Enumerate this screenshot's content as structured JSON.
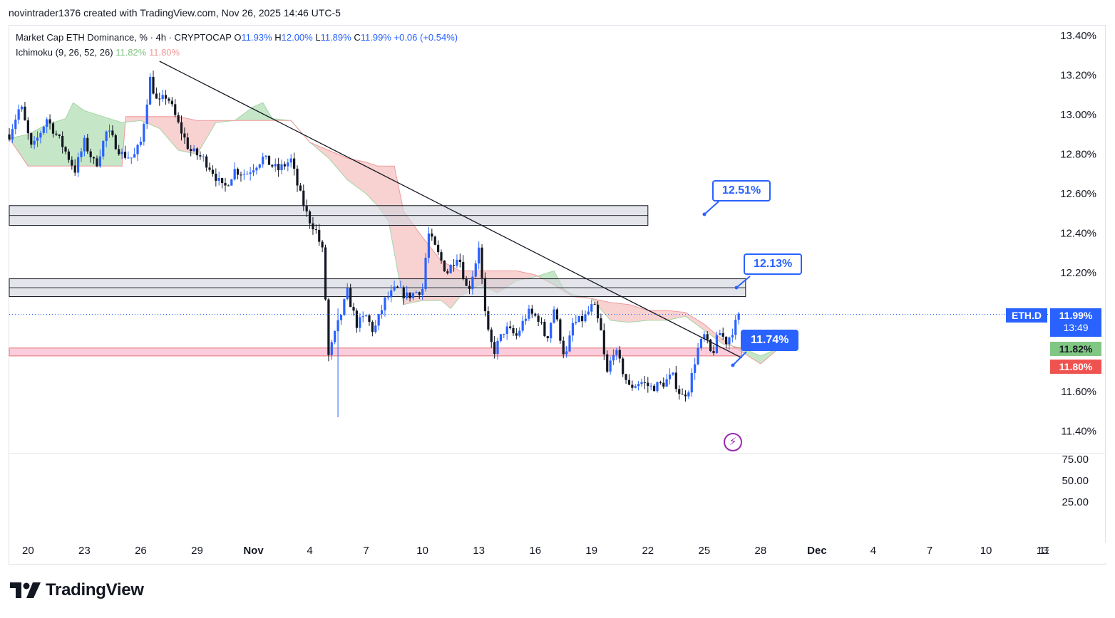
{
  "header": {
    "credit": "novintrader1376 created with TradingView.com, Nov 26, 2025 14:46 UTC-5"
  },
  "legend": {
    "title": "Market Cap ETH Dominance, % · 4h · CRYPTOCAP",
    "o_label": "O",
    "o_value": "11.93%",
    "h_label": "H",
    "h_value": "12.00%",
    "l_label": "L",
    "l_value": "11.89%",
    "c_label": "C",
    "c_value": "11.99%",
    "change": "+0.06 (+0.54%)",
    "indicator": "Ichimoku (9, 26, 52, 26)",
    "ind_a": "11.82%",
    "ind_b": "11.80%"
  },
  "price_tags": {
    "symbol": "ETH.D",
    "last": "11.99%",
    "countdown": "13:49",
    "span_a": "11.82%",
    "span_b": "11.80%"
  },
  "callouts": {
    "target_high": "12.51%",
    "target_mid": "12.13%",
    "target_low": "11.74%"
  },
  "branding": {
    "name": "TradingView"
  },
  "colors": {
    "up": "#2962ff",
    "down": "#131722",
    "cloud_bull": "#81c784",
    "cloud_bear": "#ef9a9a",
    "zone_gray": "#d1d4dc",
    "zone_red": "#f8bbd0",
    "accent": "#2962ff"
  },
  "chart_data": {
    "type": "candlestick",
    "symbol": "ETH.D",
    "title": "Market Cap ETH Dominance, % · 4h · CRYPTOCAP",
    "y_ticks": [
      "13.40%",
      "13.20%",
      "13.00%",
      "12.80%",
      "12.60%",
      "12.40%",
      "12.20%",
      "11.60%",
      "11.40%"
    ],
    "ylim": [
      11.29,
      13.45
    ],
    "x_ticks": [
      {
        "label": "20",
        "day": 20
      },
      {
        "label": "23",
        "day": 23
      },
      {
        "label": "26",
        "day": 26
      },
      {
        "label": "29",
        "day": 29
      },
      {
        "label": "Nov",
        "day": 32
      },
      {
        "label": "4",
        "day": 35
      },
      {
        "label": "7",
        "day": 38
      },
      {
        "label": "10",
        "day": 41
      },
      {
        "label": "13",
        "day": 44
      },
      {
        "label": "16",
        "day": 47
      },
      {
        "label": "19",
        "day": 50
      },
      {
        "label": "22",
        "day": 53
      },
      {
        "label": "25",
        "day": 56
      },
      {
        "label": "28",
        "day": 59
      },
      {
        "label": "Dec",
        "day": 62
      },
      {
        "label": "4",
        "day": 65
      },
      {
        "label": "7",
        "day": 68
      },
      {
        "label": "10",
        "day": 71
      },
      {
        "label": "13",
        "day": 74
      }
    ],
    "xlim": [
      19,
      74.3
    ],
    "candle_path": [
      [
        19.0,
        12.9
      ],
      [
        19.6,
        13.05
      ],
      [
        20.2,
        12.82
      ],
      [
        21.0,
        12.98
      ],
      [
        21.8,
        12.85
      ],
      [
        22.5,
        12.72
      ],
      [
        23.0,
        12.86
      ],
      [
        23.6,
        12.74
      ],
      [
        24.2,
        12.92
      ],
      [
        25.0,
        12.8
      ],
      [
        25.6,
        12.78
      ],
      [
        26.0,
        12.86
      ],
      [
        26.5,
        13.18
      ],
      [
        26.9,
        13.05
      ],
      [
        27.4,
        13.1
      ],
      [
        28.0,
        12.95
      ],
      [
        28.6,
        12.82
      ],
      [
        29.3,
        12.78
      ],
      [
        29.8,
        12.72
      ],
      [
        30.4,
        12.62
      ],
      [
        31.0,
        12.72
      ],
      [
        31.6,
        12.7
      ],
      [
        32.5,
        12.78
      ],
      [
        33.3,
        12.72
      ],
      [
        34.0,
        12.77
      ],
      [
        34.4,
        12.62
      ],
      [
        34.9,
        12.48
      ],
      [
        35.3,
        12.42
      ],
      [
        35.7,
        12.3
      ],
      [
        36.0,
        11.78
      ],
      [
        36.5,
        11.94
      ],
      [
        37.0,
        12.1
      ],
      [
        37.5,
        11.94
      ],
      [
        38.0,
        11.98
      ],
      [
        38.4,
        11.9
      ],
      [
        39.0,
        12.06
      ],
      [
        39.6,
        12.12
      ],
      [
        40.2,
        12.08
      ],
      [
        41.0,
        12.12
      ],
      [
        41.3,
        12.4
      ],
      [
        41.8,
        12.3
      ],
      [
        42.3,
        12.2
      ],
      [
        42.9,
        12.3
      ],
      [
        43.4,
        12.1
      ],
      [
        43.8,
        12.24
      ],
      [
        44.0,
        12.34
      ],
      [
        44.4,
        11.92
      ],
      [
        44.8,
        11.8
      ],
      [
        45.4,
        11.92
      ],
      [
        46.0,
        11.88
      ],
      [
        46.6,
        12.0
      ],
      [
        47.2,
        11.97
      ],
      [
        47.6,
        11.86
      ],
      [
        48.0,
        12.02
      ],
      [
        48.6,
        11.76
      ],
      [
        49.0,
        11.94
      ],
      [
        49.6,
        11.97
      ],
      [
        50.1,
        12.04
      ],
      [
        50.5,
        11.9
      ],
      [
        50.8,
        11.68
      ],
      [
        51.2,
        11.82
      ],
      [
        51.6,
        11.72
      ],
      [
        52.0,
        11.62
      ],
      [
        52.6,
        11.65
      ],
      [
        53.2,
        11.62
      ],
      [
        53.8,
        11.64
      ],
      [
        54.3,
        11.68
      ],
      [
        54.8,
        11.57
      ],
      [
        55.2,
        11.62
      ],
      [
        55.6,
        11.8
      ],
      [
        56.0,
        11.88
      ],
      [
        56.4,
        11.78
      ],
      [
        56.8,
        11.9
      ],
      [
        57.2,
        11.85
      ],
      [
        57.6,
        11.93
      ],
      [
        57.9,
        11.99
      ]
    ],
    "ichimoku": {
      "params": "Ichimoku (9, 26, 52, 26)",
      "span_a": [
        [
          19.0,
          12.88
        ],
        [
          20.0,
          12.9
        ],
        [
          21.0,
          12.95
        ],
        [
          22.0,
          12.98
        ],
        [
          22.4,
          13.06
        ],
        [
          23.0,
          13.02
        ],
        [
          24.0,
          12.99
        ],
        [
          25.0,
          12.96
        ],
        [
          26.0,
          12.97
        ],
        [
          27.0,
          12.93
        ],
        [
          28.0,
          12.82
        ],
        [
          29.0,
          12.8
        ],
        [
          30.0,
          12.96
        ],
        [
          31.0,
          12.97
        ],
        [
          32.0,
          13.04
        ],
        [
          32.5,
          13.06
        ],
        [
          33.0,
          12.98
        ],
        [
          34.0,
          12.97
        ],
        [
          35.0,
          12.86
        ],
        [
          36.0,
          12.78
        ],
        [
          37.0,
          12.67
        ],
        [
          38.0,
          12.6
        ],
        [
          38.6,
          12.54
        ],
        [
          39.2,
          12.46
        ],
        [
          40.0,
          12.04
        ],
        [
          41.0,
          12.06
        ],
        [
          42.0,
          12.06
        ],
        [
          42.5,
          12.02
        ],
        [
          43.0,
          12.08
        ],
        [
          44.0,
          12.14
        ],
        [
          45.0,
          12.1
        ],
        [
          46.0,
          12.16
        ],
        [
          47.0,
          12.18
        ],
        [
          48.0,
          12.21
        ],
        [
          48.5,
          12.12
        ],
        [
          49.0,
          12.09
        ],
        [
          50.0,
          12.07
        ],
        [
          51.0,
          11.96
        ],
        [
          52.0,
          11.95
        ],
        [
          53.0,
          11.96
        ],
        [
          54.0,
          11.96
        ],
        [
          55.0,
          11.98
        ],
        [
          56.0,
          11.91
        ],
        [
          57.0,
          11.84
        ],
        [
          58.0,
          11.82
        ],
        [
          59.0,
          11.78
        ],
        [
          60.0,
          11.82
        ]
      ],
      "span_b": [
        [
          19.0,
          12.88
        ],
        [
          20.0,
          12.74
        ],
        [
          21.0,
          12.74
        ],
        [
          22.0,
          12.74
        ],
        [
          23.0,
          12.74
        ],
        [
          24.0,
          12.74
        ],
        [
          25.0,
          12.74
        ],
        [
          25.2,
          12.99
        ],
        [
          26.0,
          12.99
        ],
        [
          27.0,
          12.99
        ],
        [
          28.0,
          12.99
        ],
        [
          29.0,
          12.97
        ],
        [
          30.0,
          12.97
        ],
        [
          31.0,
          12.97
        ],
        [
          32.0,
          12.97
        ],
        [
          33.0,
          12.97
        ],
        [
          34.0,
          12.97
        ],
        [
          35.0,
          12.86
        ],
        [
          36.0,
          12.82
        ],
        [
          37.0,
          12.78
        ],
        [
          38.0,
          12.76
        ],
        [
          38.6,
          12.74
        ],
        [
          39.5,
          12.74
        ],
        [
          40.0,
          12.51
        ],
        [
          41.0,
          12.38
        ],
        [
          42.0,
          12.26
        ],
        [
          43.0,
          12.21
        ],
        [
          44.0,
          12.21
        ],
        [
          45.0,
          12.21
        ],
        [
          46.0,
          12.21
        ],
        [
          47.0,
          12.19
        ],
        [
          48.0,
          12.14
        ],
        [
          49.0,
          12.08
        ],
        [
          50.0,
          12.07
        ],
        [
          51.0,
          12.05
        ],
        [
          52.0,
          12.04
        ],
        [
          53.0,
          12.01
        ],
        [
          54.0,
          12.01
        ],
        [
          55.0,
          12.0
        ],
        [
          56.0,
          11.94
        ],
        [
          57.0,
          11.86
        ],
        [
          58.0,
          11.8
        ],
        [
          59.0,
          11.74
        ],
        [
          60.0,
          11.82
        ]
      ]
    },
    "zones": [
      {
        "name": "upper-resistance-zone",
        "low": 12.44,
        "high": 12.54,
        "x_from": 19.0,
        "x_to": 53.0,
        "color": "#d1d4dc"
      },
      {
        "name": "mid-resistance-zone",
        "low": 12.08,
        "high": 12.17,
        "x_from": 19.0,
        "x_to": 58.2,
        "color": "#d1d4dc"
      },
      {
        "name": "support-zone",
        "low": 11.78,
        "high": 11.82,
        "x_from": 19.0,
        "x_to": 58.0,
        "color": "#f8bbd0"
      }
    ],
    "trendline": [
      [
        27.0,
        13.27
      ],
      [
        58.0,
        11.77
      ]
    ],
    "last_price_line": 11.99,
    "indicator_pane": {
      "y_ticks": [
        "75.00",
        "50.00",
        "25.00"
      ]
    }
  }
}
